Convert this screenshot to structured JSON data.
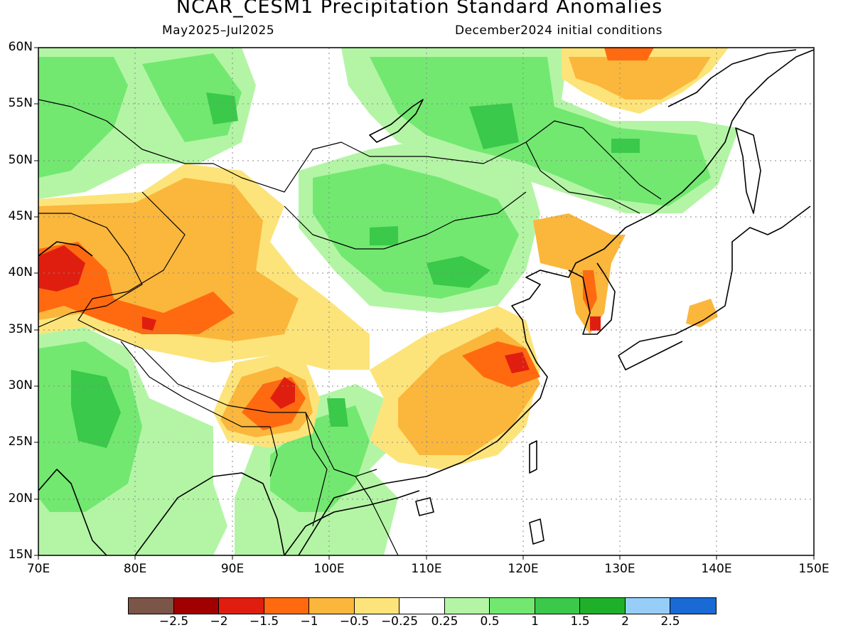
{
  "title": "NCAR_CESM1 Precipitation Standard Anomalies",
  "subtitle_left": "May2025–Jul2025",
  "subtitle_right": "December2024 initial conditions",
  "y_ticks": [
    "60N",
    "55N",
    "50N",
    "45N",
    "40N",
    "35N",
    "30N",
    "25N",
    "20N",
    "15N"
  ],
  "x_ticks": [
    "70E",
    "80E",
    "90E",
    "100E",
    "110E",
    "120E",
    "130E",
    "140E",
    "150E"
  ],
  "colorbar": {
    "colors": [
      "#7b5548",
      "#a00000",
      "#e01e10",
      "#ff6a10",
      "#fbb63c",
      "#fce47a",
      "#ffffff",
      "#b3f5a5",
      "#72e870",
      "#3ac94a",
      "#1fb02a",
      "#97cef7",
      "#1a6ad6"
    ],
    "labels": [
      "−2.5",
      "−2",
      "−1.5",
      "−1",
      "−0.5",
      "−0.25",
      "0.25",
      "0.5",
      "1",
      "1.5",
      "2",
      "2.5"
    ]
  },
  "chart_data": {
    "type": "heatmap",
    "title": "NCAR_CESM1 Precipitation Standard Anomalies",
    "period": "May2025–Jul2025",
    "initial_conditions": "December2024 initial conditions",
    "lon_range": [
      70,
      150
    ],
    "lat_range": [
      15,
      60
    ],
    "levels": [
      -2.5,
      -2,
      -1.5,
      -1,
      -0.5,
      -0.25,
      0.25,
      0.5,
      1,
      1.5,
      2,
      2.5
    ],
    "anomaly_regions": [
      {
        "lon": 73,
        "lat": 40,
        "value": -1.5
      },
      {
        "lon": 84,
        "lat": 36,
        "value": -1.2
      },
      {
        "lon": 87,
        "lat": 44,
        "value": -0.6
      },
      {
        "lon": 96,
        "lat": 29.5,
        "value": -1.6
      },
      {
        "lon": 118,
        "lat": 32,
        "value": -1.3
      },
      {
        "lon": 113,
        "lat": 27,
        "value": -0.6
      },
      {
        "lon": 127,
        "lat": 36,
        "value": -1.2
      },
      {
        "lon": 130,
        "lat": 58,
        "value": -0.7
      },
      {
        "lon": 127,
        "lat": 43,
        "value": -0.6
      },
      {
        "lon": 75,
        "lat": 57,
        "value": 0.8
      },
      {
        "lon": 90,
        "lat": 55,
        "value": 0.8
      },
      {
        "lon": 106,
        "lat": 42,
        "value": 0.9
      },
      {
        "lon": 117,
        "lat": 53,
        "value": 0.9
      },
      {
        "lon": 77,
        "lat": 27,
        "value": 1.1
      },
      {
        "lon": 101,
        "lat": 24,
        "value": 0.8
      }
    ]
  }
}
